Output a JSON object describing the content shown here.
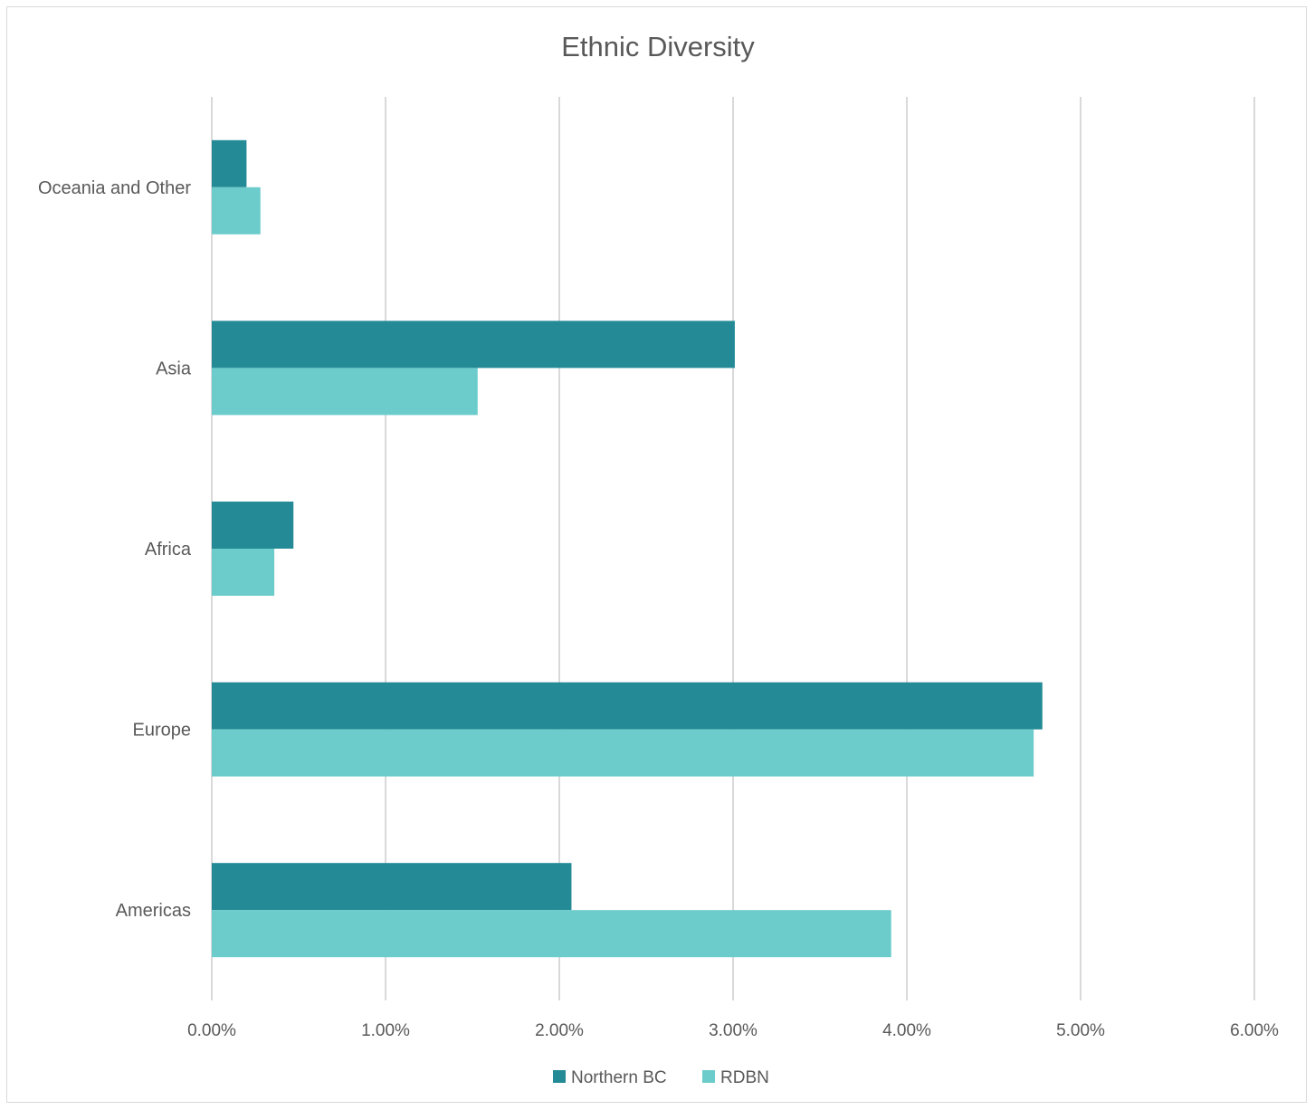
{
  "chart_data": {
    "type": "bar",
    "orientation": "horizontal",
    "title": "Ethnic Diversity",
    "xlabel": "",
    "ylabel": "",
    "categories": [
      "Oceania and Other",
      "Asia",
      "Africa",
      "Europe",
      "Americas"
    ],
    "series": [
      {
        "name": "Northern BC",
        "color": "#238a96",
        "values": [
          0.2,
          3.01,
          0.47,
          4.78,
          2.07
        ]
      },
      {
        "name": "RDBN",
        "color": "#6ccbcb",
        "values": [
          0.28,
          1.53,
          0.36,
          4.73,
          3.91
        ]
      }
    ],
    "xlim": [
      0,
      6
    ],
    "x_ticks": [
      0,
      1,
      2,
      3,
      4,
      5,
      6
    ],
    "x_tick_labels": [
      "0.00%",
      "1.00%",
      "2.00%",
      "3.00%",
      "4.00%",
      "5.00%",
      "6.00%"
    ],
    "grid": "vertical",
    "legend": "bottom"
  }
}
